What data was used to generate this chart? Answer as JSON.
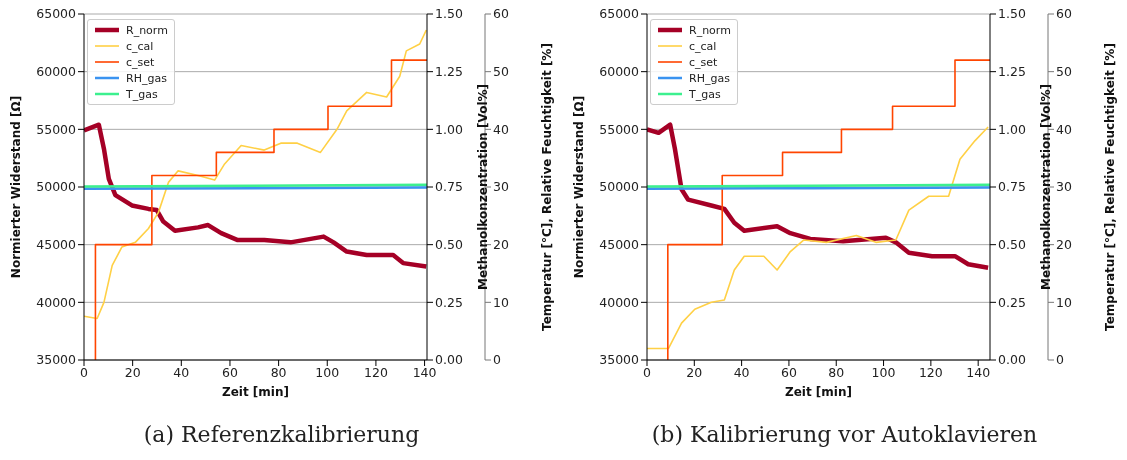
{
  "chart_data": [
    {
      "type": "line",
      "xlabel": "Zeit [min]",
      "ylabel": "Normierter Widerstand [Ω]",
      "y2label": "Methanolkonzentration [Vol%]",
      "y3label": "Temperatur [°C], Relative Feuchtigkeit [%]",
      "annotations": [
        "(a) Referenzkalibrierung"
      ],
      "xlim": [
        0,
        141
      ],
      "xticks": [
        0,
        20,
        40,
        60,
        80,
        100,
        120,
        140
      ],
      "ylim": [
        35000,
        65000
      ],
      "yticks": [
        35000,
        40000,
        45000,
        50000,
        55000,
        60000,
        65000
      ],
      "y2lim": [
        0,
        1.5
      ],
      "y2ticks": [
        {
          "value": 0,
          "label": "0.00"
        },
        {
          "value": 0.25,
          "label": "0.25"
        },
        {
          "value": 0.5,
          "label": "0.50"
        },
        {
          "value": 0.75,
          "label": "0.75"
        },
        {
          "value": 1,
          "label": "1.00"
        },
        {
          "value": 1.25,
          "label": "1.25"
        },
        {
          "value": 1.5,
          "label": "1.50"
        }
      ],
      "y3lim": [
        0,
        60
      ],
      "y3ticks": [
        0,
        10,
        20,
        30,
        40,
        50,
        60
      ],
      "grid": "y",
      "legend": "top left",
      "series": [
        {
          "name": "R_norm",
          "color": "#a50026",
          "x": [
            0,
            4.8,
            6.1,
            8.2,
            10.2,
            12.9,
            19.7,
            26.5,
            29.9,
            32.6,
            37.4,
            46.9,
            51,
            56.4,
            63.2,
            74.1,
            84.9,
            98.5,
            102.6,
            108,
            116.2,
            127.1,
            131.2,
            140.7
          ],
          "values": [
            54900,
            55300,
            55400,
            53300,
            50700,
            49300,
            48400,
            48100,
            48000,
            47000,
            46200,
            46500,
            46700,
            46000,
            45400,
            45400,
            45200,
            45700,
            45200,
            44400,
            44100,
            44100,
            43400,
            43100
          ]
        },
        {
          "name": "c_cal",
          "color": "#ffd045",
          "axis": "y2",
          "x": [
            0,
            5.4,
            8.2,
            11.6,
            15.6,
            21.1,
            26.5,
            30.6,
            34.7,
            38.7,
            46.9,
            53.7,
            57.8,
            64.6,
            74.1,
            80.9,
            87.7,
            97.2,
            104,
            108,
            116.2,
            124.4,
            129.8,
            132.5,
            138,
            140.7
          ],
          "values": [
            0.19,
            0.18,
            0.25,
            0.41,
            0.49,
            0.51,
            0.57,
            0.64,
            0.77,
            0.82,
            0.8,
            0.78,
            0.85,
            0.93,
            0.91,
            0.94,
            0.94,
            0.9,
            1.0,
            1.08,
            1.16,
            1.14,
            1.23,
            1.34,
            1.37,
            1.43
          ]
        },
        {
          "name": "c_set",
          "color": "#ff4500",
          "type": "step",
          "axis": "y2",
          "x": [
            4.7,
            27.9,
            54.4,
            78.1,
            100.3,
            126.4,
            141
          ],
          "values": [
            0,
            0.5,
            0.8,
            0.9,
            1.0,
            1.1,
            1.3
          ]
        },
        {
          "name": "RH_gas",
          "color": "#3a93f0",
          "axis": "y3",
          "x": [
            0,
            70,
            141
          ],
          "values": [
            29.7,
            29.8,
            29.9
          ]
        },
        {
          "name": "T_gas",
          "color": "#3cf08f",
          "axis": "y3",
          "x": [
            0,
            70,
            141
          ],
          "values": [
            30.1,
            30.2,
            30.4
          ]
        }
      ]
    },
    {
      "type": "line",
      "xlabel": "Zeit [min]",
      "ylabel": "Normierter Widerstand [Ω]",
      "y2label": "Methanolkonzentration [Vol%]",
      "y3label": "Temperatur [°C], Relative Feuchtigkeit [%]",
      "annotations": [
        "(b) Kalibrierung vor Autoklavieren"
      ],
      "xlim": [
        0,
        145
      ],
      "xticks": [
        0,
        20,
        40,
        60,
        80,
        100,
        120,
        140
      ],
      "ylim": [
        35000,
        65000
      ],
      "yticks": [
        35000,
        40000,
        45000,
        50000,
        55000,
        60000,
        65000
      ],
      "y2lim": [
        0,
        1.5
      ],
      "y2ticks": [
        {
          "value": 0,
          "label": "0.00"
        },
        {
          "value": 0.25,
          "label": "0.25"
        },
        {
          "value": 0.5,
          "label": "0.50"
        },
        {
          "value": 0.75,
          "label": "0.75"
        },
        {
          "value": 1,
          "label": "1.00"
        },
        {
          "value": 1.25,
          "label": "1.25"
        },
        {
          "value": 1.5,
          "label": "1.50"
        }
      ],
      "y3lim": [
        0,
        60
      ],
      "y3ticks": [
        0,
        10,
        20,
        30,
        40,
        50,
        60
      ],
      "grid": "y",
      "legend": "top left",
      "series": [
        {
          "name": "R_norm",
          "color": "#a50026",
          "x": [
            0,
            4.9,
            9.8,
            11.8,
            14.6,
            17.4,
            27.2,
            32.7,
            36.9,
            41.1,
            55,
            60.6,
            69,
            82.9,
            101,
            105.2,
            110.7,
            120.5,
            130.2,
            135.8,
            144.2
          ],
          "values": [
            55000,
            54700,
            55400,
            53300,
            49800,
            48900,
            48400,
            48100,
            46900,
            46200,
            46600,
            46000,
            45500,
            45300,
            45600,
            45200,
            44300,
            44000,
            44000,
            43300,
            43000
          ]
        },
        {
          "name": "c_cal",
          "color": "#ffd045",
          "axis": "y2",
          "x": [
            0,
            9.1,
            14.6,
            20.2,
            27.2,
            32.7,
            36.9,
            41.1,
            49.4,
            55,
            60.6,
            66.2,
            75.9,
            88.5,
            96.8,
            105.2,
            110.7,
            119.1,
            127.5,
            132.3,
            138.6,
            144.2
          ],
          "values": [
            0.05,
            0.05,
            0.16,
            0.22,
            0.25,
            0.26,
            0.39,
            0.45,
            0.45,
            0.39,
            0.47,
            0.52,
            0.51,
            0.54,
            0.51,
            0.52,
            0.65,
            0.71,
            0.71,
            0.87,
            0.95,
            1.01
          ]
        },
        {
          "name": "c_set",
          "color": "#ff4500",
          "type": "step",
          "axis": "y2",
          "x": [
            8.8,
            31.8,
            57.3,
            82.2,
            103.8,
            130.2,
            145
          ],
          "values": [
            0,
            0.5,
            0.8,
            0.9,
            1.0,
            1.1,
            1.3
          ]
        },
        {
          "name": "RH_gas",
          "color": "#3a93f0",
          "axis": "y3",
          "x": [
            0,
            70,
            145
          ],
          "values": [
            29.7,
            29.8,
            29.9
          ]
        },
        {
          "name": "T_gas",
          "color": "#3cf08f",
          "axis": "y3",
          "x": [
            0,
            70,
            145
          ],
          "values": [
            30.1,
            30.2,
            30.4
          ]
        }
      ]
    }
  ]
}
